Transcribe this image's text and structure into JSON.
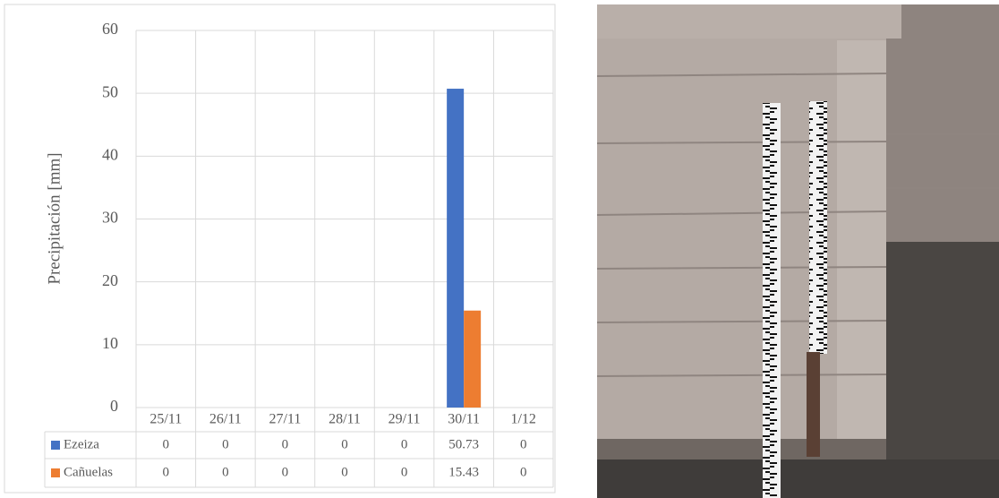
{
  "chart_data": {
    "type": "bar",
    "y_label": "Precipitación [mm]",
    "categories": [
      "25/11",
      "26/11",
      "27/11",
      "28/11",
      "29/11",
      "30/11",
      "1/12"
    ],
    "series": [
      {
        "name": "Ezeiza",
        "color": "#4472c4",
        "values": [
          0,
          0,
          0,
          0,
          0,
          50.73,
          0
        ]
      },
      {
        "name": "Cañuelas",
        "color": "#ed7d31",
        "values": [
          0,
          0,
          0,
          0,
          0,
          15.43,
          0
        ]
      }
    ],
    "ylim": [
      0,
      60
    ],
    "yticks": [
      0,
      10,
      20,
      30,
      40,
      50,
      60
    ],
    "grid": true,
    "data_table": true
  }
}
